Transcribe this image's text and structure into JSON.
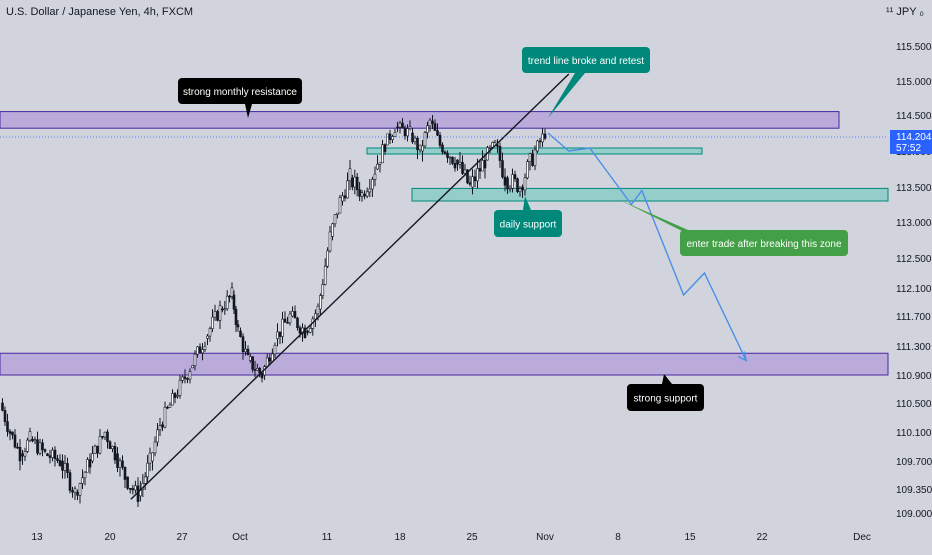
{
  "header": {
    "title": "U.S. Dollar / Japanese Yen, 4h, FXCM",
    "corner_label": "¹¹ JPY ₀"
  },
  "chart_data": {
    "type": "candlestick",
    "symbol": "U.S. Dollar / Japanese Yen",
    "timeframe": "4h",
    "source": "FXCM",
    "y_ticks": [
      "115.500",
      "115.000",
      "114.500",
      "113.900",
      "113.500",
      "113.000",
      "112.500",
      "112.100",
      "111.700",
      "111.300",
      "110.900",
      "110.500",
      "110.100",
      "109.700",
      "109.350",
      "109.000"
    ],
    "x_ticks": [
      "13",
      "20",
      "27",
      "Oct",
      "11",
      "18",
      "25",
      "Nov",
      "8",
      "15",
      "22",
      "Dec"
    ],
    "price_label": {
      "value": "114.204",
      "countdown": "57:52"
    },
    "zones": [
      {
        "name": "monthly-resistance",
        "from": 114.28,
        "to": 114.55,
        "color": "#b39ddb"
      },
      {
        "name": "upper-support",
        "from": 113.87,
        "to": 113.95,
        "color": "#80cbc4"
      },
      {
        "name": "daily-support",
        "from": 113.3,
        "to": 113.48,
        "color": "#80cbc4"
      },
      {
        "name": "strong-support",
        "from": 110.9,
        "to": 111.2,
        "color": "#b39ddb"
      }
    ],
    "trend_line": {
      "from": [
        "Sep 22",
        109.2
      ],
      "to": [
        "Nov 3",
        115.1
      ]
    },
    "projection": [
      [
        "Nov 1",
        114.2
      ],
      [
        "Nov 3",
        113.9
      ],
      [
        "Nov 5",
        113.95
      ],
      [
        "Nov 9",
        113.25
      ],
      [
        "Nov 10",
        113.45
      ],
      [
        "Nov 14",
        112.0
      ],
      [
        "Nov 16",
        112.3
      ],
      [
        "Nov 20",
        111.1
      ]
    ],
    "annotations": [
      {
        "text": "strong monthly resistance",
        "style": "black"
      },
      {
        "text": "trend line broke and retest",
        "style": "teal"
      },
      {
        "text": "daily support",
        "style": "teal"
      },
      {
        "text": "enter trade after breaking this zone",
        "style": "green"
      },
      {
        "text": "strong support",
        "style": "black"
      }
    ],
    "colors": {
      "background": "#d1d4dc",
      "up": "#ffffff",
      "down": "#131722",
      "projection": "#4a8fe7",
      "price_tag": "#2962ff"
    },
    "candles": []
  }
}
